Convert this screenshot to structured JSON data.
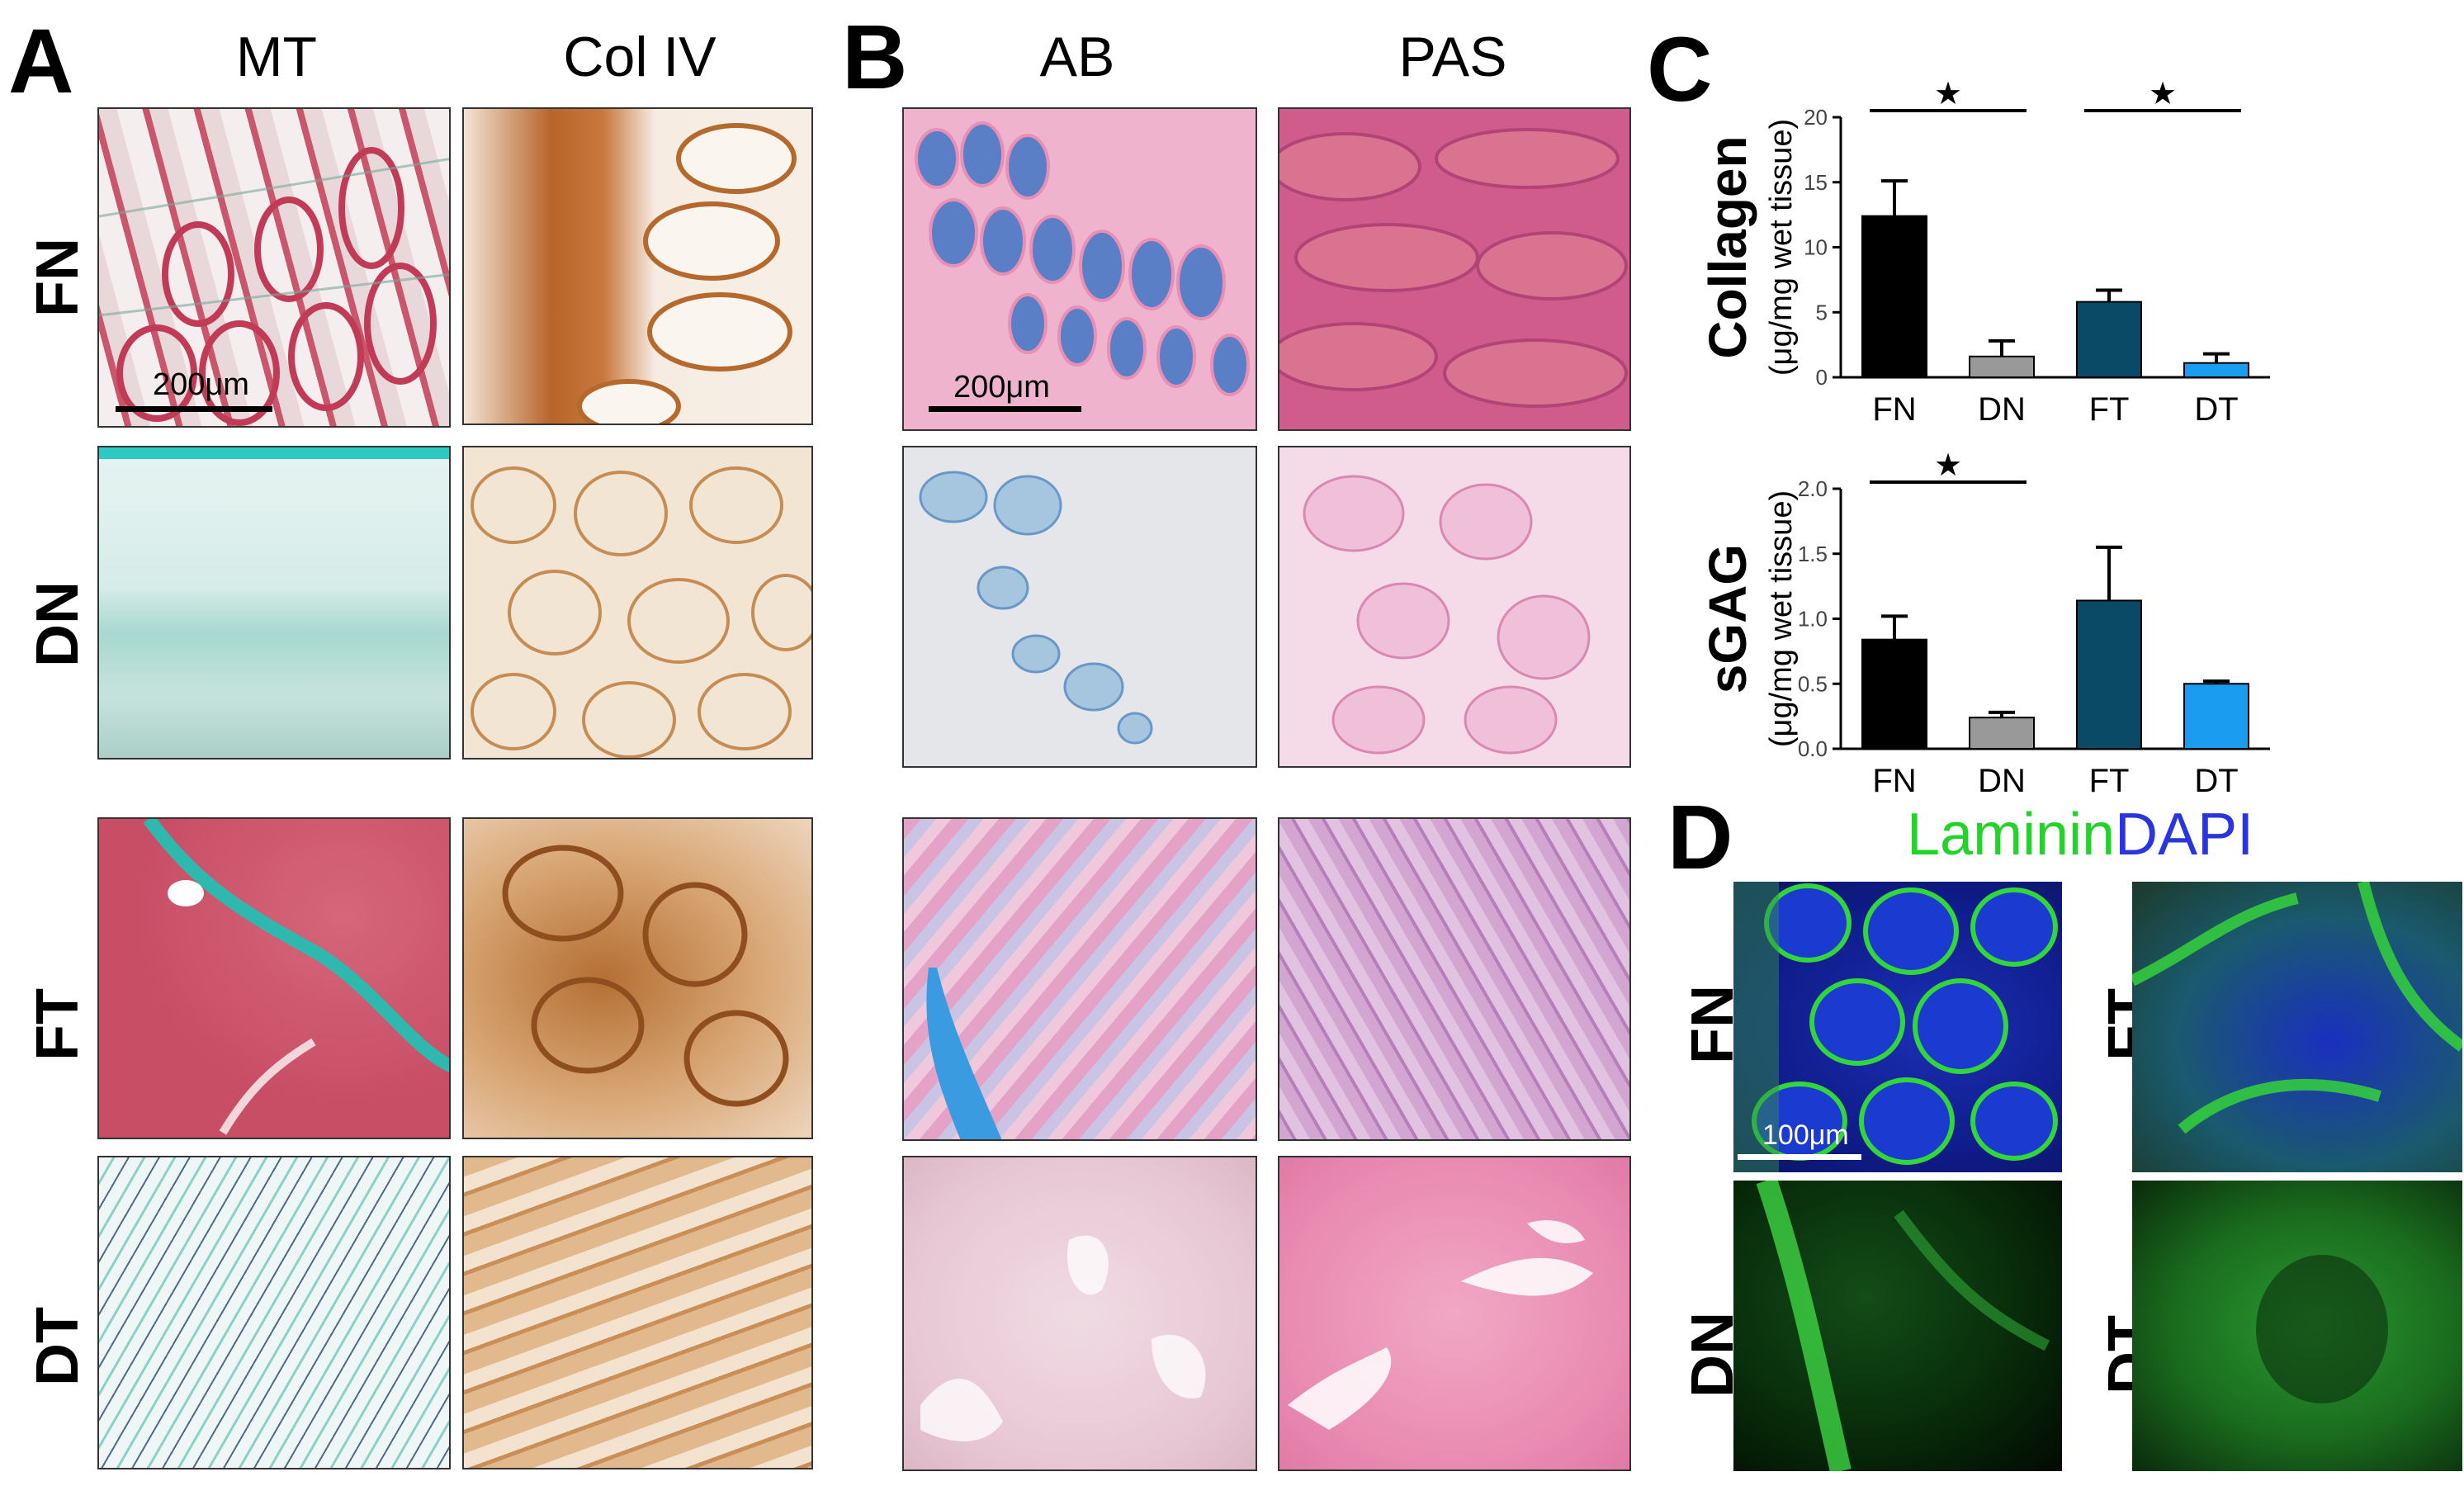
{
  "panelA": {
    "letter": "A",
    "columns": [
      "MT",
      "Col IV"
    ],
    "rows": [
      "FN",
      "DN",
      "FT",
      "DT"
    ],
    "scale_bar": "200μm",
    "tile_colors": {
      "MT": [
        "#c9566a",
        "#9fd6cf",
        "#c65369",
        "#d2eae6"
      ],
      "Col IV": [
        "#b56a2c",
        "#d9b48b",
        "#a9672f",
        "#d3a36d"
      ]
    }
  },
  "panelB": {
    "letter": "B",
    "columns": [
      "AB",
      "PAS"
    ],
    "scale_bar": "200μm",
    "tile_colors": {
      "AB": [
        "#8c9fd4",
        "#dfe3ea",
        "#e2a9c6",
        "#e9c9d5"
      ],
      "PAS": [
        "#cf5c8a",
        "#f0d2e2",
        "#c99bc9",
        "#e995b9"
      ]
    }
  },
  "panelC": {
    "letter": "C",
    "charts": [
      {
        "type": "bar",
        "title_main": "Collagen",
        "title_unit": "(μg/mg wet tissue)",
        "categories": [
          "FN",
          "DN",
          "FT",
          "DT"
        ],
        "values": [
          12.4,
          1.6,
          5.8,
          1.1
        ],
        "errors": [
          2.7,
          1.2,
          0.9,
          0.7
        ],
        "colors": [
          "#000000",
          "#999999",
          "#0b4a66",
          "#1a9cf0"
        ],
        "ylim": [
          0,
          20
        ],
        "yticks": [
          "0",
          "5",
          "10",
          "15",
          "20"
        ],
        "significance": [
          [
            "FN",
            "DN"
          ],
          [
            "FT",
            "DT"
          ]
        ]
      },
      {
        "type": "bar",
        "title_main": "sGAG",
        "title_unit": "(μg/mg wet tissue)",
        "categories": [
          "FN",
          "DN",
          "FT",
          "DT"
        ],
        "values": [
          0.84,
          0.24,
          1.14,
          0.5
        ],
        "errors": [
          0.18,
          0.04,
          0.41,
          0.02
        ],
        "colors": [
          "#000000",
          "#999999",
          "#0b4a66",
          "#1a9cf0"
        ],
        "ylim": [
          0,
          2.0
        ],
        "yticks": [
          "0.0",
          "0.5",
          "1.0",
          "1.5",
          "2.0"
        ],
        "significance": [
          [
            "FN",
            "DN"
          ]
        ]
      }
    ],
    "star": "★"
  },
  "panelD": {
    "letter": "D",
    "title_laminin": "Laminin",
    "title_dapi": "DAPI",
    "laminin_color": "#22d32a",
    "dapi_color": "#2a35e0",
    "rows": [
      "FN",
      "DN"
    ],
    "rows_right": [
      "FT",
      "DT"
    ],
    "scale_bar": "100μm"
  }
}
